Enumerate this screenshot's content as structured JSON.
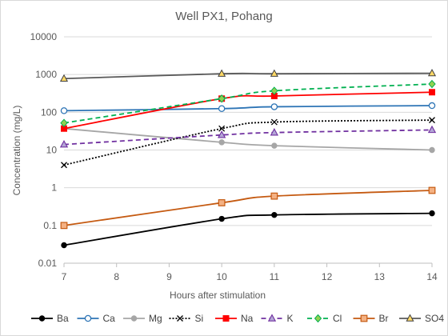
{
  "chart_data": {
    "type": "line",
    "title": "Well PX1, Pohang",
    "xlabel": "Hours after stimulation",
    "ylabel": "Concentration (mg/L)",
    "xlim": [
      7,
      14
    ],
    "ylim": [
      0.01,
      10000
    ],
    "yscale": "log",
    "x_ticks": [
      "7",
      "8",
      "9",
      "10",
      "11",
      "12",
      "13",
      "14"
    ],
    "y_ticks": [
      "0.01",
      "0.1",
      "1",
      "10",
      "100",
      "1000",
      "10000"
    ],
    "grid": "horizontal",
    "legend_position": "bottom",
    "series": [
      {
        "name": "Ba",
        "x": [
          7,
          10,
          11,
          14
        ],
        "values": [
          0.03,
          0.15,
          0.19,
          0.21
        ],
        "color": "#000000",
        "dash": "solid",
        "marker": "circle-filled"
      },
      {
        "name": "Ca",
        "x": [
          7,
          10,
          11,
          14
        ],
        "values": [
          110,
          125,
          140,
          150
        ],
        "color": "#2e75b6",
        "dash": "solid",
        "marker": "circle-open"
      },
      {
        "name": "Mg",
        "x": [
          7,
          10,
          11,
          14
        ],
        "values": [
          37,
          16,
          13,
          10
        ],
        "color": "#a6a6a6",
        "dash": "solid",
        "marker": "circle-filled"
      },
      {
        "name": "Si",
        "x": [
          7,
          10,
          11,
          14
        ],
        "values": [
          4,
          37,
          55,
          62
        ],
        "color": "#000000",
        "dash": "dotted",
        "marker": "x"
      },
      {
        "name": "Na",
        "x": [
          7,
          10,
          11,
          14
        ],
        "values": [
          37,
          230,
          270,
          340
        ],
        "color": "#ff0000",
        "dash": "solid",
        "marker": "square-filled"
      },
      {
        "name": "K",
        "x": [
          7,
          10,
          11,
          14
        ],
        "values": [
          14,
          25,
          29,
          34
        ],
        "color": "#7030a0",
        "dash": "dashed",
        "marker": "triangle-open"
      },
      {
        "name": "Cl",
        "x": [
          7,
          10,
          11,
          14
        ],
        "values": [
          52,
          230,
          370,
          560
        ],
        "color": "#00b050",
        "dash": "dashed",
        "marker": "diamond-filled"
      },
      {
        "name": "Br",
        "x": [
          7,
          10,
          11,
          14
        ],
        "values": [
          0.1,
          0.4,
          0.6,
          0.85
        ],
        "color": "#c55a11",
        "dash": "solid",
        "marker": "square-open"
      },
      {
        "name": "SO4",
        "x": [
          7,
          10,
          11,
          14
        ],
        "values": [
          780,
          1050,
          1050,
          1080
        ],
        "color": "#595959",
        "dash": "solid",
        "marker": "triangle-filled"
      }
    ]
  }
}
